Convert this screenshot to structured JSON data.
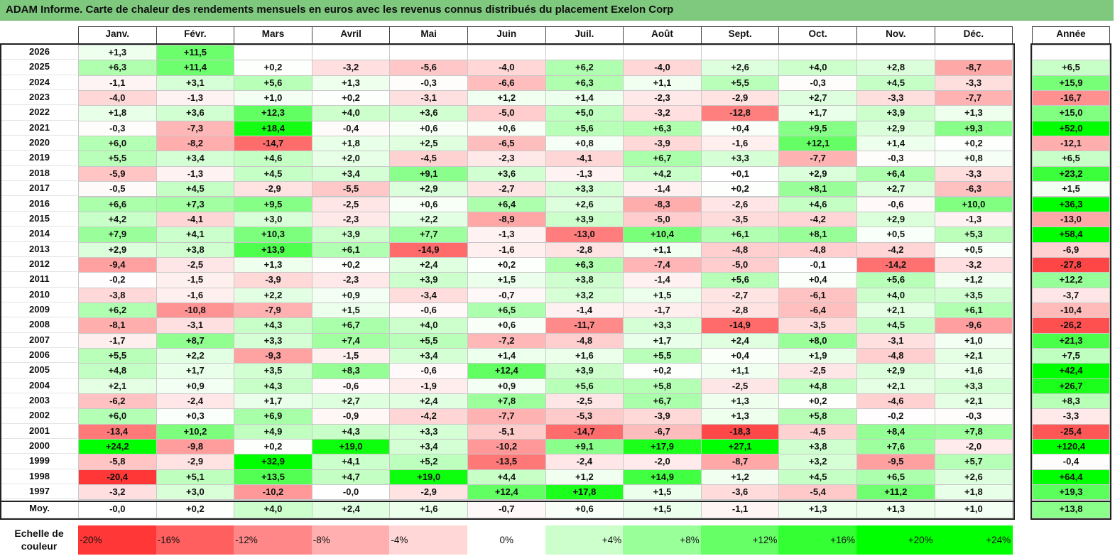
{
  "title": "ADAM Informe. Carte de chaleur des rendements mensuels en euros avec les revenus connus distribués du placement Exelon Corp",
  "chart_data": {
    "type": "heatmap",
    "months": [
      "Janv.",
      "Févr.",
      "Mars",
      "Avril",
      "Mai",
      "Juin",
      "Juil.",
      "Août",
      "Sept.",
      "Oct.",
      "Nov.",
      "Déc."
    ],
    "year_header": "Année",
    "rows": [
      {
        "year": "2026",
        "values": [
          "+1,3",
          "+11,5",
          "",
          "",
          "",
          "",
          "",
          "",
          "",
          "",
          "",
          ""
        ],
        "annual": ""
      },
      {
        "year": "2025",
        "values": [
          "+6,3",
          "+11,4",
          "+0,2",
          "-3,2",
          "-5,6",
          "-4,0",
          "+6,2",
          "-4,0",
          "+2,6",
          "+4,0",
          "+2,8",
          "-8,7"
        ],
        "annual": "+6,5"
      },
      {
        "year": "2024",
        "values": [
          "-1,1",
          "+3,1",
          "+5,6",
          "+1,3",
          "-0,3",
          "-6,6",
          "+6,3",
          "+1,1",
          "+5,5",
          "-0,3",
          "+4,5",
          "-3,3"
        ],
        "annual": "+15,9"
      },
      {
        "year": "2023",
        "values": [
          "-4,0",
          "-1,3",
          "+1,0",
          "+0,2",
          "-3,1",
          "+1,2",
          "+1,4",
          "-2,3",
          "-2,9",
          "+2,7",
          "-3,3",
          "-7,7"
        ],
        "annual": "-16,7"
      },
      {
        "year": "2022",
        "values": [
          "+1,8",
          "+3,6",
          "+12,3",
          "+4,0",
          "+3,6",
          "-5,0",
          "+5,0",
          "-3,2",
          "-12,8",
          "+1,7",
          "+3,9",
          "+1,3"
        ],
        "annual": "+15,0"
      },
      {
        "year": "2021",
        "values": [
          "-0,3",
          "-7,3",
          "+18,4",
          "-0,4",
          "+0,6",
          "+0,6",
          "+5,6",
          "+6,3",
          "+0,4",
          "+9,5",
          "+2,9",
          "+9,3"
        ],
        "annual": "+52,0"
      },
      {
        "year": "2020",
        "values": [
          "+6,0",
          "-8,2",
          "-14,7",
          "+1,8",
          "+2,5",
          "-6,5",
          "+0,8",
          "-3,9",
          "-1,6",
          "+12,1",
          "+1,4",
          "+0,2"
        ],
        "annual": "-12,1"
      },
      {
        "year": "2019",
        "values": [
          "+5,5",
          "+3,4",
          "+4,6",
          "+2,0",
          "-4,5",
          "-2,3",
          "-4,1",
          "+6,7",
          "+3,3",
          "-7,7",
          "-0,3",
          "+0,8"
        ],
        "annual": "+6,5"
      },
      {
        "year": "2018",
        "values": [
          "-5,9",
          "-1,3",
          "+4,5",
          "+3,4",
          "+9,1",
          "+3,6",
          "-1,3",
          "+4,2",
          "+0,1",
          "+2,9",
          "+6,4",
          "-3,3"
        ],
        "annual": "+23,2"
      },
      {
        "year": "2017",
        "values": [
          "-0,5",
          "+4,5",
          "-2,9",
          "-5,5",
          "+2,9",
          "-2,7",
          "+3,3",
          "-1,4",
          "+0,2",
          "+8,1",
          "+2,7",
          "-6,3"
        ],
        "annual": "+1,5"
      },
      {
        "year": "2016",
        "values": [
          "+6,6",
          "+7,3",
          "+9,5",
          "-2,5",
          "+0,6",
          "+6,4",
          "+2,6",
          "-8,3",
          "-2,6",
          "+4,6",
          "-0,6",
          "+10,0"
        ],
        "annual": "+36,3"
      },
      {
        "year": "2015",
        "values": [
          "+4,2",
          "-4,1",
          "+3,0",
          "-2,3",
          "+2,2",
          "-8,9",
          "+3,9",
          "-5,0",
          "-3,5",
          "-4,2",
          "+2,9",
          "-1,3"
        ],
        "annual": "-13,0"
      },
      {
        "year": "2014",
        "values": [
          "+7,9",
          "+4,1",
          "+10,3",
          "+3,9",
          "+7,7",
          "-1,3",
          "-13,0",
          "+10,4",
          "+6,1",
          "+8,1",
          "+0,5",
          "+5,3"
        ],
        "annual": "+58,4"
      },
      {
        "year": "2013",
        "values": [
          "+2,9",
          "+3,8",
          "+13,9",
          "+6,1",
          "-14,9",
          "-1,6",
          "-2,8",
          "+1,1",
          "-4,8",
          "-4,8",
          "-4,2",
          "+0,5"
        ],
        "annual": "-6,9"
      },
      {
        "year": "2012",
        "values": [
          "-9,4",
          "-2,5",
          "+1,3",
          "+0,2",
          "+2,4",
          "+0,2",
          "+6,3",
          "-7,4",
          "-5,0",
          "-0,1",
          "-14,2",
          "-3,2"
        ],
        "annual": "-27,8"
      },
      {
        "year": "2011",
        "values": [
          "-0,2",
          "-1,5",
          "-3,9",
          "-2,3",
          "+3,9",
          "+1,5",
          "+3,8",
          "-1,4",
          "+5,6",
          "+0,4",
          "+5,6",
          "+1,2"
        ],
        "annual": "+12,2"
      },
      {
        "year": "2010",
        "values": [
          "-3,8",
          "-1,6",
          "+2,2",
          "+0,9",
          "-3,4",
          "-0,7",
          "+3,2",
          "+1,5",
          "-2,7",
          "-6,1",
          "+4,0",
          "+3,5"
        ],
        "annual": "-3,7"
      },
      {
        "year": "2009",
        "values": [
          "+6,2",
          "-10,8",
          "-7,9",
          "+1,5",
          "-0,6",
          "+6,5",
          "-1,4",
          "-1,7",
          "-2,8",
          "-6,4",
          "+2,1",
          "+6,1"
        ],
        "annual": "-10,4"
      },
      {
        "year": "2008",
        "values": [
          "-8,1",
          "-3,1",
          "+4,3",
          "+6,7",
          "+4,0",
          "+0,6",
          "-11,7",
          "+3,3",
          "-14,9",
          "-3,5",
          "+4,5",
          "-9,6"
        ],
        "annual": "-26,2"
      },
      {
        "year": "2007",
        "values": [
          "-1,7",
          "+8,7",
          "+3,3",
          "+7,4",
          "+5,5",
          "-7,2",
          "-4,8",
          "+1,7",
          "+2,4",
          "+8,0",
          "-3,1",
          "+1,0"
        ],
        "annual": "+21,3"
      },
      {
        "year": "2006",
        "values": [
          "+5,5",
          "+2,2",
          "-9,3",
          "-1,5",
          "+3,4",
          "+1,4",
          "+1,6",
          "+5,5",
          "+0,4",
          "+1,9",
          "-4,8",
          "+2,1"
        ],
        "annual": "+7,5"
      },
      {
        "year": "2005",
        "values": [
          "+4,8",
          "+1,7",
          "+3,5",
          "+8,3",
          "-0,6",
          "+12,4",
          "+3,9",
          "+0,2",
          "+1,1",
          "-2,5",
          "+2,9",
          "+1,6"
        ],
        "annual": "+42,4"
      },
      {
        "year": "2004",
        "values": [
          "+2,1",
          "+0,9",
          "+4,3",
          "-0,6",
          "-1,9",
          "+0,9",
          "+5,6",
          "+5,8",
          "-2,5",
          "+4,8",
          "+2,1",
          "+3,3"
        ],
        "annual": "+26,7"
      },
      {
        "year": "2003",
        "values": [
          "-6,2",
          "-2,4",
          "+1,7",
          "+2,7",
          "+2,4",
          "+7,8",
          "-2,5",
          "+6,7",
          "+1,3",
          "+0,2",
          "-4,6",
          "+2,1"
        ],
        "annual": "+8,3"
      },
      {
        "year": "2002",
        "values": [
          "+6,0",
          "+0,3",
          "+6,9",
          "-0,9",
          "-4,2",
          "-7,7",
          "-5,3",
          "-3,9",
          "+1,3",
          "+5,8",
          "-0,2",
          "-0,3"
        ],
        "annual": "-3,3"
      },
      {
        "year": "2001",
        "values": [
          "-13,4",
          "+10,2",
          "+4,9",
          "+4,3",
          "+3,3",
          "-5,1",
          "-14,7",
          "-6,7",
          "-18,3",
          "-4,5",
          "+8,4",
          "+7,8"
        ],
        "annual": "-25,4"
      },
      {
        "year": "2000",
        "values": [
          "+24,2",
          "-9,8",
          "+0,2",
          "+19,0",
          "+3,4",
          "-10,2",
          "+9,1",
          "+17,9",
          "+27,1",
          "+3,8",
          "+7,6",
          "-2,0"
        ],
        "annual": "+120,4"
      },
      {
        "year": "1999",
        "values": [
          "-5,8",
          "-2,9",
          "+32,9",
          "+4,1",
          "+5,2",
          "-13,5",
          "-2,4",
          "-2,0",
          "-8,7",
          "+3,2",
          "-9,5",
          "+5,7"
        ],
        "annual": "-0,4"
      },
      {
        "year": "1998",
        "values": [
          "-20,4",
          "+5,1",
          "+13,5",
          "+4,7",
          "+19,0",
          "+4,4",
          "+1,2",
          "+14,9",
          "+1,2",
          "+4,5",
          "+6,5",
          "+2,6"
        ],
        "annual": "+64,4"
      },
      {
        "year": "1997",
        "values": [
          "-3,2",
          "+3,0",
          "-10,2",
          "-0,0",
          "-2,9",
          "+12,4",
          "+17,8",
          "+1,5",
          "-3,6",
          "-5,4",
          "+11,2",
          "+1,8"
        ],
        "annual": "+19,3"
      }
    ],
    "average": {
      "label": "Moy.",
      "values": [
        "-0,0",
        "+0,2",
        "+4,0",
        "+2,4",
        "+1,6",
        "-0,7",
        "+0,6",
        "+1,5",
        "-1,1",
        "+1,3",
        "+1,3",
        "+1,0"
      ],
      "annual": "+13,8"
    },
    "legend": {
      "label": "Echelle de couleur",
      "steps": [
        "-20%",
        "-16%",
        "-12%",
        "-8%",
        "-4%",
        "0%",
        "+4%",
        "+8%",
        "+12%",
        "+16%",
        "+20%",
        "+24%"
      ]
    },
    "colors": {
      "negative_max": "#ff0000",
      "neutral": "#ffffff",
      "positive_max": "#00ff00"
    }
  }
}
